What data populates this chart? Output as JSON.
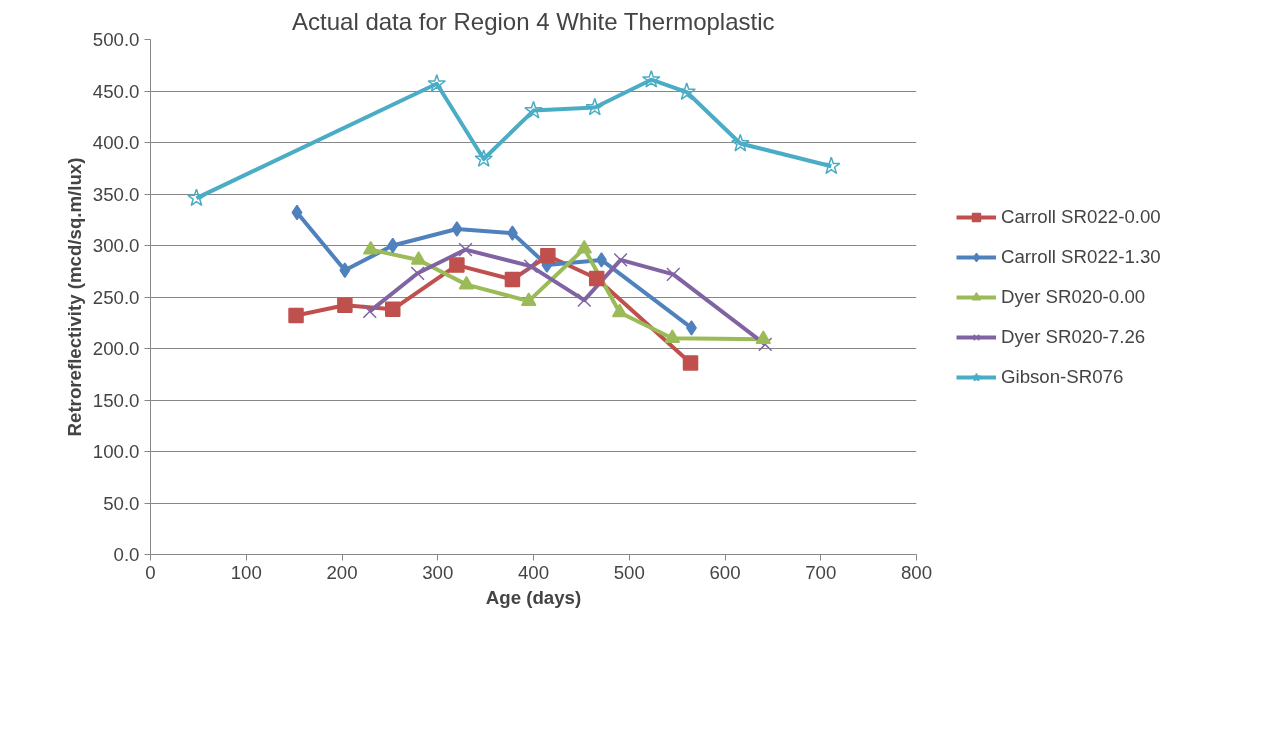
{
  "chart_data": {
    "type": "line",
    "title": "Actual data for Region 4 White Thermoplastic",
    "xlabel": "Age (days)",
    "ylabel": "Retroreflectivity (mcd/sq.m/lux)",
    "xlim": [
      0,
      800
    ],
    "xticks": [
      0,
      100,
      200,
      300,
      400,
      500,
      600,
      700,
      800
    ],
    "ylim": [
      0,
      500
    ],
    "yticks": [
      {
        "value": 0,
        "label": "0.0"
      },
      {
        "value": 50,
        "label": "50.0"
      },
      {
        "value": 100,
        "label": "100.0"
      },
      {
        "value": 150,
        "label": "150.0"
      },
      {
        "value": 200,
        "label": "200.0"
      },
      {
        "value": 250,
        "label": "250.0"
      },
      {
        "value": 300,
        "label": "300.0"
      },
      {
        "value": 350,
        "label": "350.0"
      },
      {
        "value": 400,
        "label": "400.0"
      },
      {
        "value": 450,
        "label": "450.0"
      },
      {
        "value": 500,
        "label": "500.0"
      }
    ],
    "grid": "y",
    "legend": "right",
    "series": [
      {
        "name": "Carroll SR022-0.00",
        "color": "#c0504d",
        "marker": "square",
        "x": [
          152,
          203,
          253,
          320,
          378,
          415,
          466,
          564
        ],
        "values": [
          232,
          242,
          238,
          281,
          267,
          290,
          268,
          186
        ]
      },
      {
        "name": "Carroll SR022-1.30",
        "color": "#4f81bd",
        "marker": "diamond",
        "x": [
          153,
          203,
          253,
          320,
          378,
          414,
          471,
          565
        ],
        "values": [
          332,
          276,
          300,
          316,
          312,
          281,
          286,
          220
        ]
      },
      {
        "name": "Dyer SR020-0.00",
        "color": "#9bbb59",
        "marker": "triangle",
        "x": [
          230,
          280,
          330,
          395,
          453,
          490,
          545,
          640
        ],
        "values": [
          296,
          286,
          262,
          246,
          297,
          235,
          210,
          209
        ]
      },
      {
        "name": "Dyer SR020-7.26",
        "color": "#8064a2",
        "marker": "cross",
        "x": [
          229,
          279,
          329,
          397,
          453,
          491,
          546,
          642
        ],
        "values": [
          236,
          273,
          296,
          280,
          247,
          286,
          272,
          204
        ]
      },
      {
        "name": "Gibson-SR076",
        "color": "#4bacc6",
        "marker": "star",
        "x": [
          48,
          299,
          348,
          400,
          464,
          523,
          560,
          616,
          711
        ],
        "values": [
          346,
          457,
          384,
          431,
          434,
          461,
          449,
          399,
          377
        ]
      }
    ]
  }
}
